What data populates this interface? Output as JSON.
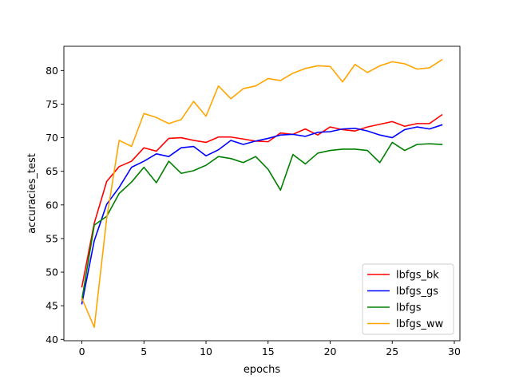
{
  "chart_data": {
    "type": "line",
    "title": "",
    "xlabel": "epochs",
    "ylabel": "accuracies_test",
    "xlim": [
      -1.45,
      30.45
    ],
    "ylim": [
      39.8,
      83.6
    ],
    "xticks": [
      0,
      5,
      10,
      15,
      20,
      25,
      30
    ],
    "yticks": [
      40,
      45,
      50,
      55,
      60,
      65,
      70,
      75,
      80
    ],
    "grid": false,
    "legend_position": "lower-right",
    "x": [
      0,
      1,
      2,
      3,
      4,
      5,
      6,
      7,
      8,
      9,
      10,
      11,
      12,
      13,
      14,
      15,
      16,
      17,
      18,
      19,
      20,
      21,
      22,
      23,
      24,
      25,
      26,
      27,
      28,
      29
    ],
    "series": [
      {
        "name": "lbfgs_bk",
        "color": "#ff0000",
        "values": [
          47.8,
          57.3,
          63.5,
          65.7,
          66.5,
          68.5,
          68.0,
          69.9,
          70.0,
          69.6,
          69.3,
          70.1,
          70.1,
          69.8,
          69.5,
          69.4,
          70.7,
          70.5,
          71.3,
          70.4,
          71.6,
          71.2,
          71.0,
          71.6,
          72.0,
          72.4,
          71.7,
          72.1,
          72.1,
          73.4
        ]
      },
      {
        "name": "lbfgs_gs",
        "color": "#0000ff",
        "values": [
          45.3,
          54.7,
          60.1,
          62.6,
          65.6,
          66.5,
          67.6,
          67.2,
          68.5,
          68.7,
          67.3,
          68.2,
          69.6,
          69.0,
          69.5,
          69.9,
          70.4,
          70.5,
          70.2,
          70.8,
          70.9,
          71.3,
          71.4,
          71.0,
          70.4,
          70.0,
          71.2,
          71.6,
          71.3,
          71.9
        ]
      },
      {
        "name": "lbfgs",
        "color": "#008000",
        "values": [
          45.9,
          57.0,
          58.3,
          61.7,
          63.4,
          65.6,
          63.3,
          66.5,
          64.7,
          65.1,
          65.9,
          67.2,
          66.9,
          66.3,
          67.2,
          65.3,
          62.2,
          67.5,
          66.1,
          67.7,
          68.1,
          68.3,
          68.3,
          68.1,
          66.3,
          69.3,
          68.1,
          69.0,
          69.1,
          69.0
        ]
      },
      {
        "name": "lbfgs_ww",
        "color": "#ffa500",
        "values": [
          46.1,
          41.8,
          58.0,
          69.6,
          68.7,
          73.6,
          73.0,
          72.1,
          72.7,
          75.4,
          73.2,
          77.7,
          75.8,
          77.3,
          77.7,
          78.8,
          78.5,
          79.6,
          80.3,
          80.7,
          80.6,
          78.3,
          80.9,
          79.7,
          80.7,
          81.3,
          81.0,
          80.2,
          80.4,
          81.6
        ]
      }
    ]
  }
}
